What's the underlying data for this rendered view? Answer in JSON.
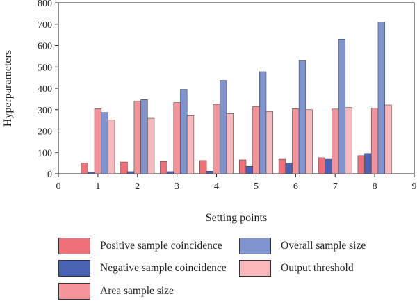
{
  "chart_data": {
    "type": "bar",
    "xlabel": "Setting points",
    "ylabel": "Hyperparameters",
    "xlim": [
      0,
      9
    ],
    "ylim": [
      0,
      800
    ],
    "xticks": [
      0,
      1,
      2,
      3,
      4,
      5,
      6,
      7,
      8,
      9
    ],
    "yticks": [
      0,
      100,
      200,
      300,
      400,
      500,
      600,
      700,
      800
    ],
    "x": [
      1,
      2,
      3,
      4,
      5,
      6,
      7,
      8
    ],
    "legend_position": "bottom",
    "series": [
      {
        "name": "Positive sample coincidence",
        "color": "#f07078",
        "values": [
          50,
          55,
          58,
          62,
          65,
          68,
          75,
          85
        ]
      },
      {
        "name": "Negative sample coincidence",
        "color": "#4a62b4",
        "values": [
          8,
          10,
          10,
          12,
          35,
          50,
          68,
          95
        ]
      },
      {
        "name": "Area sample size",
        "color": "#f2949a",
        "values": [
          305,
          340,
          333,
          325,
          315,
          305,
          303,
          308
        ]
      },
      {
        "name": "Overall sample size",
        "color": "#7f93cf",
        "values": [
          287,
          347,
          395,
          437,
          478,
          530,
          630,
          710
        ]
      },
      {
        "name": "Output threshold",
        "color": "#f7b9bc",
        "values": [
          252,
          260,
          272,
          282,
          292,
          300,
          310,
          322
        ]
      }
    ]
  }
}
